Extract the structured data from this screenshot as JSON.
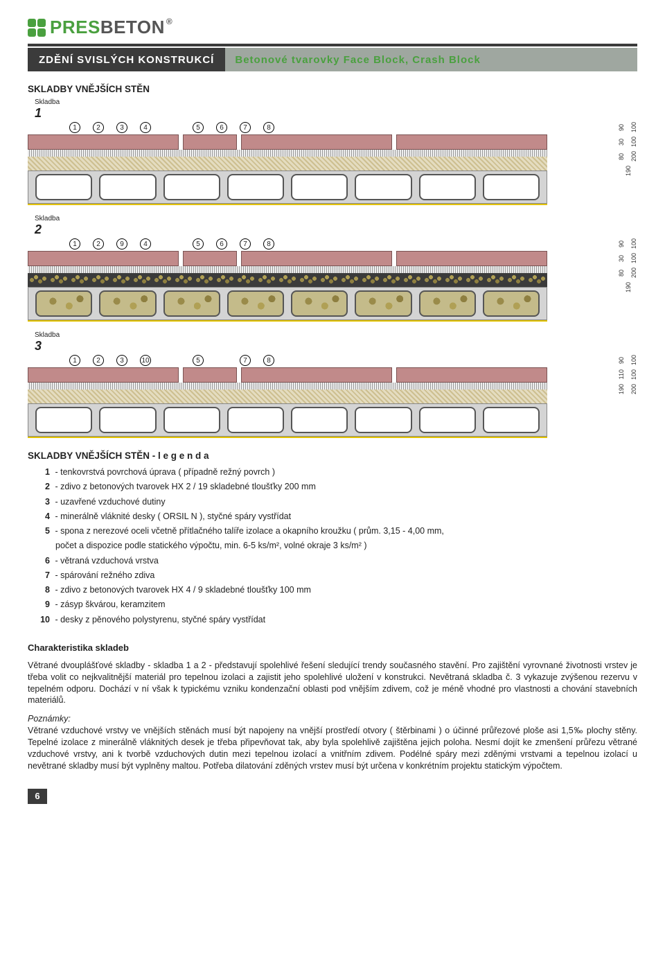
{
  "logo": {
    "pres": "PRES",
    "beton": "BETON",
    "reg": "®"
  },
  "header": {
    "left": "ZDĚNÍ SVISLÝCH KONSTRUKCÍ",
    "right": "Betonové tvarovky Face Block, Crash Block"
  },
  "section_title_1": "SKLADBY VNĚJŠÍCH STĚN",
  "diagrams": {
    "label_word": "Skladba",
    "items": [
      {
        "num": "1",
        "callouts_left": [
          "1",
          "2",
          "3",
          "4"
        ],
        "callouts_right": [
          "5",
          "6",
          "7",
          "8"
        ],
        "rows": [
          "brick",
          "speck",
          "beige",
          "block",
          "yellow"
        ],
        "dims_inner": [
          "90",
          "30",
          "80",
          "190"
        ],
        "dims_outer": [
          "100",
          "100",
          "200"
        ]
      },
      {
        "num": "2",
        "callouts_left": [
          "1",
          "2",
          "9",
          "4"
        ],
        "callouts_right": [
          "5",
          "6",
          "7",
          "8"
        ],
        "rows": [
          "brick",
          "speck",
          "gravel",
          "blockX",
          "yellow"
        ],
        "dims_inner": [
          "90",
          "30",
          "80",
          "190"
        ],
        "dims_outer": [
          "100",
          "100",
          "200"
        ]
      },
      {
        "num": "3",
        "callouts_left": [
          "1",
          "2",
          "3",
          "10"
        ],
        "callouts_right": [
          "5",
          "",
          "7",
          "8"
        ],
        "rows": [
          "brick",
          "speck",
          "beige",
          "block",
          "yellow"
        ],
        "dims_inner": [
          "90",
          "110",
          "190"
        ],
        "dims_outer": [
          "100",
          "100",
          "200"
        ]
      }
    ]
  },
  "legend_title": "SKLADBY VNĚJŠÍCH STĚN - l e g e n d a",
  "legend": [
    {
      "n": "1",
      "t": "- tenkovrstvá povrchová úprava ( případně režný povrch )"
    },
    {
      "n": "2",
      "t": "- zdivo z betonových tvarovek HX 2 / 19 skladebné tloušťky 200 mm"
    },
    {
      "n": "3",
      "t": "- uzavřené vzduchové dutiny"
    },
    {
      "n": "4",
      "t": "- minerálně vláknité desky ( ORSIL N ), styčné spáry vystřídat"
    },
    {
      "n": "5",
      "t": "- spona z nerezové oceli včetně přítlačného talíře izolace a okapního kroužku ( prům. 3,15 - 4,00 mm,"
    },
    {
      "n": "",
      "t": "počet a dispozice podle statického výpočtu, min. 6-5 ks/m², volné okraje 3 ks/m² )",
      "indent": true
    },
    {
      "n": "6",
      "t": "- větraná vzduchová vrstva"
    },
    {
      "n": "7",
      "t": "- spárování režného zdiva"
    },
    {
      "n": "8",
      "t": "- zdivo z betonových tvarovek HX 4 / 9 skladebné tloušťky 100 mm"
    },
    {
      "n": "9",
      "t": "- zásyp škvárou, keramzitem"
    },
    {
      "n": "10",
      "t": "- desky z pěnového polystyrenu, styčné spáry vystřídat"
    }
  ],
  "char_title": "Charakteristika skladeb",
  "char_para": "Větrané dvouplášťové skladby - skladba 1 a 2 - představují spolehlivé řešení sledující trendy současného stavění. Pro zajištění vyrovnané životnosti vrstev je třeba volit co nejkvalitnější materiál pro tepelnou izolaci a zajistit jeho spolehlivé uložení v konstrukci. Nevětraná skladba č. 3 vykazuje zvýšenou rezervu v tepelném odporu. Dochází v ní však k typickému vzniku kondenzační oblasti pod vnějším zdivem, což je méně vhodné pro vlastnosti a chování stavebních materiálů.",
  "notes_title": "Poznámky:",
  "notes_para": "Větrané vzduchové vrstvy ve vnějších stěnách musí být napojeny na vnější prostředí otvory ( štěrbinami ) o účinné průřezové ploše asi 1,5‰ plochy stěny. Tepelné izolace z minerálně vláknitých desek je třeba připevňovat tak, aby byla spolehlivě zajištěna jejich poloha. Nesmí dojít ke zmenšení průřezu větrané vzduchové vrstvy, ani k tvorbě vzduchových dutin mezi tepelnou izolací a vnitřním zdivem. Podélné spáry mezi zděnými vrstvami a tepelnou izolací u nevětrané skladby musí být vyplněny maltou. Potřeba dilatování zděných vrstev musí být určena v konkrétním projektu statickým výpočtem.",
  "page_number": "6",
  "colors": {
    "green": "#4aa03f",
    "dark": "#3b3b3b"
  }
}
